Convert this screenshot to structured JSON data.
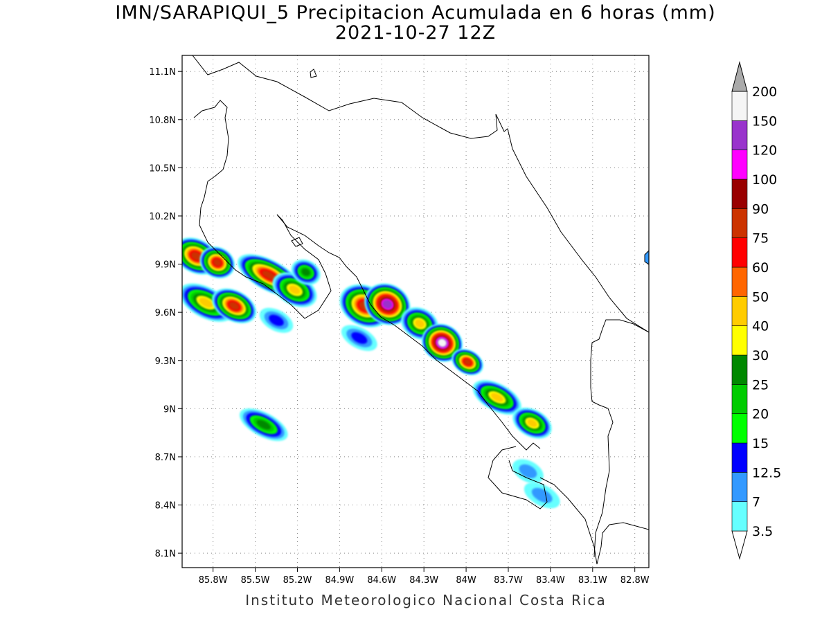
{
  "title": {
    "line1": "IMN/SARAPIQUI_5 Precipitacion Acumulada en 6 horas (mm)",
    "line2": "2021-10-27 12Z"
  },
  "credit": "Instituto Meteorologico Nacional Costa Rica",
  "map": {
    "lon_range": [
      -86.02,
      -82.7
    ],
    "lat_range": [
      8.01,
      11.2
    ],
    "lat_ticks": [
      {
        "value": 11.1,
        "label": "11.1N"
      },
      {
        "value": 10.8,
        "label": "10.8N"
      },
      {
        "value": 10.5,
        "label": "10.5N"
      },
      {
        "value": 10.2,
        "label": "10.2N"
      },
      {
        "value": 9.9,
        "label": "9.9N"
      },
      {
        "value": 9.6,
        "label": "9.6N"
      },
      {
        "value": 9.3,
        "label": "9.3N"
      },
      {
        "value": 9.0,
        "label": "9N"
      },
      {
        "value": 8.7,
        "label": "8.7N"
      },
      {
        "value": 8.4,
        "label": "8.4N"
      },
      {
        "value": 8.1,
        "label": "8.1N"
      }
    ],
    "lon_ticks": [
      {
        "value": -85.8,
        "label": "85.8W"
      },
      {
        "value": -85.5,
        "label": "85.5W"
      },
      {
        "value": -85.2,
        "label": "85.2W"
      },
      {
        "value": -84.9,
        "label": "84.9W"
      },
      {
        "value": -84.6,
        "label": "84.6W"
      },
      {
        "value": -84.3,
        "label": "84.3W"
      },
      {
        "value": -84.0,
        "label": "84W"
      },
      {
        "value": -83.7,
        "label": "83.7W"
      },
      {
        "value": -83.4,
        "label": "83.4W"
      },
      {
        "value": -83.1,
        "label": "83.1W"
      },
      {
        "value": -82.8,
        "label": "82.8W"
      }
    ]
  },
  "colorbar": {
    "unit": "mm",
    "levels": [
      {
        "label": "3.5",
        "color": "#66ffff"
      },
      {
        "label": "7",
        "color": "#3399ff"
      },
      {
        "label": "12.5",
        "color": "#0000ff"
      },
      {
        "label": "15",
        "color": "#00ff00"
      },
      {
        "label": "20",
        "color": "#00cc00"
      },
      {
        "label": "25",
        "color": "#008800"
      },
      {
        "label": "30",
        "color": "#ffff00"
      },
      {
        "label": "40",
        "color": "#ffcc00"
      },
      {
        "label": "50",
        "color": "#ff6600"
      },
      {
        "label": "60",
        "color": "#ff0000"
      },
      {
        "label": "75",
        "color": "#cc3300"
      },
      {
        "label": "90",
        "color": "#990000"
      },
      {
        "label": "100",
        "color": "#ff00ff"
      },
      {
        "label": "120",
        "color": "#9933cc"
      },
      {
        "label": "150",
        "color": "#f5f5f5"
      },
      {
        "label": "200",
        "color": "#aaaaaa"
      }
    ]
  },
  "precip_cells": [
    {
      "lon": -85.92,
      "lat": 9.95,
      "rx": 0.1,
      "ry": 0.07,
      "max_mm": 75
    },
    {
      "lon": -85.77,
      "lat": 9.91,
      "rx": 0.06,
      "ry": 0.06,
      "max_mm": 75
    },
    {
      "lon": -85.4,
      "lat": 9.83,
      "rx": 0.18,
      "ry": 0.06,
      "max_mm": 75
    },
    {
      "lon": -85.22,
      "lat": 9.74,
      "rx": 0.1,
      "ry": 0.06,
      "max_mm": 40
    },
    {
      "lon": -85.85,
      "lat": 9.66,
      "rx": 0.14,
      "ry": 0.06,
      "max_mm": 40
    },
    {
      "lon": -85.65,
      "lat": 9.64,
      "rx": 0.1,
      "ry": 0.06,
      "max_mm": 75
    },
    {
      "lon": -84.72,
      "lat": 9.64,
      "rx": 0.12,
      "ry": 0.09,
      "max_mm": 75
    },
    {
      "lon": -84.56,
      "lat": 9.65,
      "rx": 0.1,
      "ry": 0.09,
      "max_mm": 120
    },
    {
      "lon": -84.33,
      "lat": 9.53,
      "rx": 0.07,
      "ry": 0.06,
      "max_mm": 40
    },
    {
      "lon": -84.17,
      "lat": 9.41,
      "rx": 0.08,
      "ry": 0.08,
      "max_mm": 150
    },
    {
      "lon": -83.99,
      "lat": 9.29,
      "rx": 0.05,
      "ry": 0.04,
      "max_mm": 75
    },
    {
      "lon": -83.78,
      "lat": 9.07,
      "rx": 0.12,
      "ry": 0.05,
      "max_mm": 40
    },
    {
      "lon": -83.53,
      "lat": 8.91,
      "rx": 0.08,
      "ry": 0.05,
      "max_mm": 40
    },
    {
      "lon": -85.14,
      "lat": 9.85,
      "rx": 0.04,
      "ry": 0.04,
      "max_mm": 25
    },
    {
      "lon": -85.44,
      "lat": 8.9,
      "rx": 0.12,
      "ry": 0.04,
      "max_mm": 25
    },
    {
      "lon": -84.76,
      "lat": 9.44,
      "rx": 0.07,
      "ry": 0.03,
      "max_mm": 12.5
    },
    {
      "lon": -85.35,
      "lat": 9.55,
      "rx": 0.06,
      "ry": 0.03,
      "max_mm": 12.5
    },
    {
      "lon": -83.56,
      "lat": 8.61,
      "rx": 0.05,
      "ry": 0.03,
      "max_mm": 7
    },
    {
      "lon": -83.46,
      "lat": 8.46,
      "rx": 0.07,
      "ry": 0.03,
      "max_mm": 7
    }
  ]
}
